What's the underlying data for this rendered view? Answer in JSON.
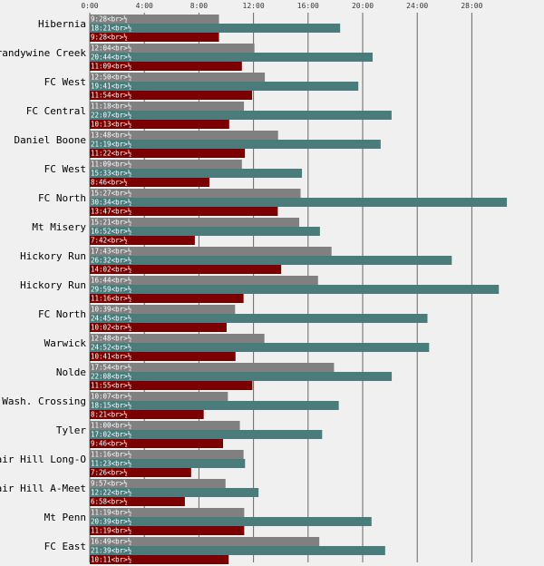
{
  "colors": {
    "background": "#f0f0f0",
    "grid": "#666666",
    "series": [
      "#808080",
      "#4a7c7c",
      "#7a0000"
    ]
  },
  "chart_data": {
    "type": "bar",
    "orientation": "horizontal",
    "value_unit": "minutes",
    "x_ticks": [
      "0:00",
      "4:00",
      "8:00",
      "12:00",
      "16:00",
      "20:00",
      "24:00",
      "28:00"
    ],
    "x_range": [
      0,
      32
    ],
    "grid": true,
    "categories": [
      "Hibernia",
      "Brandywine Creek",
      "FC West",
      "FC Central",
      "Daniel Boone",
      "FC West",
      "FC North",
      "Mt Misery",
      "Hickory Run",
      "Hickory Run",
      "FC North",
      "Warwick",
      "Nolde",
      "Wash. Crossing",
      "Tyler",
      "Fair Hill Long-O",
      "Fair Hill A-Meet",
      "Mt Penn",
      "FC East"
    ],
    "series": [
      {
        "labels": [
          "9:28<br>½",
          "12:04<br>½",
          "12:50<br>½",
          "11:18<br>½",
          "13:48<br>½",
          "11:09<br>½",
          "15:27<br>½",
          "15:21<br>½",
          "17:43<br>½",
          "16:44<br>½",
          "10:39<br>½",
          "12:48<br>½",
          "17:54<br>½",
          "10:07<br>½",
          "11:00<br>½",
          "11:16<br>½",
          "9:57<br>½",
          "11:19<br>½",
          "16:49<br>½"
        ],
        "values": [
          9.47,
          12.07,
          12.83,
          11.3,
          13.8,
          11.15,
          15.45,
          15.35,
          17.72,
          16.73,
          10.65,
          12.8,
          17.9,
          10.12,
          11.0,
          11.27,
          9.95,
          11.32,
          16.82
        ]
      },
      {
        "labels": [
          "18:21<br>½",
          "20:44<br>½",
          "19:41<br>½",
          "22:07<br>½",
          "21:19<br>½",
          "15:33<br>½",
          "30:34<br>½",
          "16:52<br>½",
          "26:32<br>½",
          "29:59<br>½",
          "24:45<br>½",
          "24:52<br>½",
          "22:08<br>½",
          "18:15<br>½",
          "17:02<br>½",
          "11:23<br>½",
          "12:22<br>½",
          "20:39<br>½",
          "21:39<br>½"
        ],
        "values": [
          18.35,
          20.73,
          19.68,
          22.12,
          21.32,
          15.55,
          30.57,
          16.87,
          26.53,
          29.98,
          24.75,
          24.87,
          22.13,
          18.25,
          17.03,
          11.38,
          12.37,
          20.65,
          21.65
        ]
      },
      {
        "labels": [
          "9:28<br>½",
          "11:09<br>½",
          "11:54<br>½",
          "10:13<br>½",
          "11:22<br>½",
          "8:46<br>½",
          "13:47<br>½",
          "7:42<br>½",
          "14:02<br>½",
          "11:16<br>½",
          "10:02<br>½",
          "10:41<br>½",
          "11:55<br>½",
          "8:21<br>½",
          "9:46<br>½",
          "7:26<br>½",
          "6:58<br>½",
          "11:19<br>½",
          "10:11<br>½"
        ],
        "values": [
          9.47,
          11.15,
          11.9,
          10.22,
          11.37,
          8.77,
          13.78,
          7.7,
          14.03,
          11.27,
          10.03,
          10.68,
          11.92,
          8.35,
          9.77,
          7.43,
          6.97,
          11.32,
          10.18
        ]
      }
    ]
  }
}
